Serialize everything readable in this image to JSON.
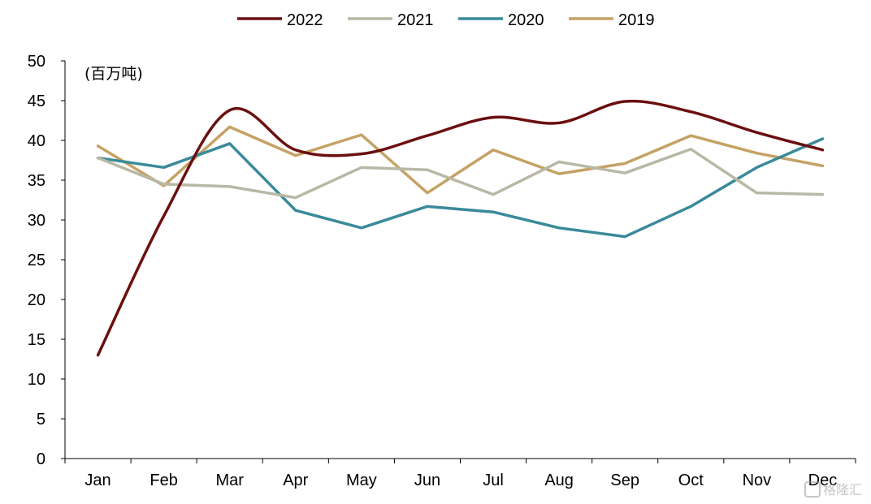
{
  "chart_data": {
    "type": "line",
    "title": "",
    "xlabel": "",
    "ylabel": "(百万吨)",
    "ylim": [
      0,
      50
    ],
    "yticks": [
      0,
      5,
      10,
      15,
      20,
      25,
      30,
      35,
      40,
      45,
      50
    ],
    "categories": [
      "Jan",
      "Feb",
      "Mar",
      "Apr",
      "May",
      "Jun",
      "Jul",
      "Aug",
      "Sep",
      "Oct",
      "Nov",
      "Dec"
    ],
    "grid": false,
    "legend_position": "top-center",
    "series": [
      {
        "name": "2022",
        "color": "#6b0f0f",
        "smooth": true,
        "values": [
          13.0,
          30.5,
          43.8,
          38.8,
          38.3,
          40.6,
          42.9,
          42.2,
          44.9,
          43.6,
          41.0,
          38.8
        ]
      },
      {
        "name": "2021",
        "color": "#b9b8a6",
        "smooth": false,
        "values": [
          37.8,
          34.5,
          34.2,
          32.8,
          36.6,
          36.3,
          33.2,
          37.3,
          35.9,
          38.9,
          33.4,
          33.2
        ]
      },
      {
        "name": "2020",
        "color": "#3a8a9a",
        "smooth": false,
        "values": [
          37.8,
          36.6,
          39.6,
          31.2,
          29.0,
          31.7,
          31.0,
          29.0,
          27.9,
          31.7,
          36.6,
          40.2
        ]
      },
      {
        "name": "2019",
        "color": "#c4a265",
        "smooth": false,
        "values": [
          39.3,
          34.3,
          41.7,
          38.1,
          40.7,
          33.4,
          38.8,
          35.8,
          37.1,
          40.6,
          38.4,
          36.8
        ]
      }
    ]
  },
  "watermark": {
    "text": "格隆汇"
  }
}
